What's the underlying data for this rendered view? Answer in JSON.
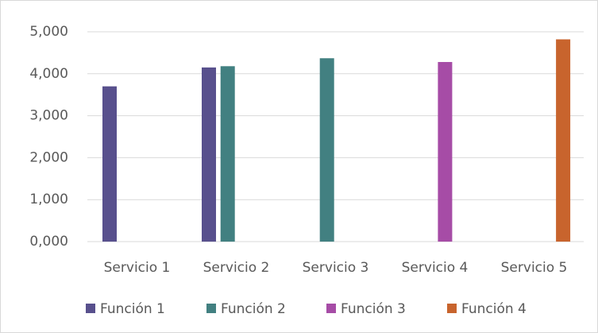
{
  "chart_data": {
    "type": "bar",
    "categories": [
      "Servicio 1",
      "Servicio 2",
      "Servicio 3",
      "Servicio 4",
      "Servicio 5"
    ],
    "series": [
      {
        "name": "Función 1",
        "color": "#58508d",
        "values": [
          3.7,
          4.15,
          null,
          null,
          null
        ]
      },
      {
        "name": "Función 2",
        "color": "#428081",
        "values": [
          null,
          4.18,
          4.37,
          null,
          null
        ]
      },
      {
        "name": "Función 3",
        "color": "#a64ca6",
        "values": [
          null,
          null,
          null,
          4.28,
          null
        ]
      },
      {
        "name": "Función 4",
        "color": "#c8642d",
        "values": [
          null,
          null,
          null,
          null,
          4.82
        ]
      }
    ],
    "ylim": [
      0,
      5
    ],
    "yticks": [
      {
        "value": 0,
        "label": "0,000"
      },
      {
        "value": 1,
        "label": "1,000"
      },
      {
        "value": 2,
        "label": "2,000"
      },
      {
        "value": 3,
        "label": "3,000"
      },
      {
        "value": 4,
        "label": "4,000"
      },
      {
        "value": 5,
        "label": "5,000"
      }
    ],
    "grid": true,
    "legend": "bottom"
  }
}
